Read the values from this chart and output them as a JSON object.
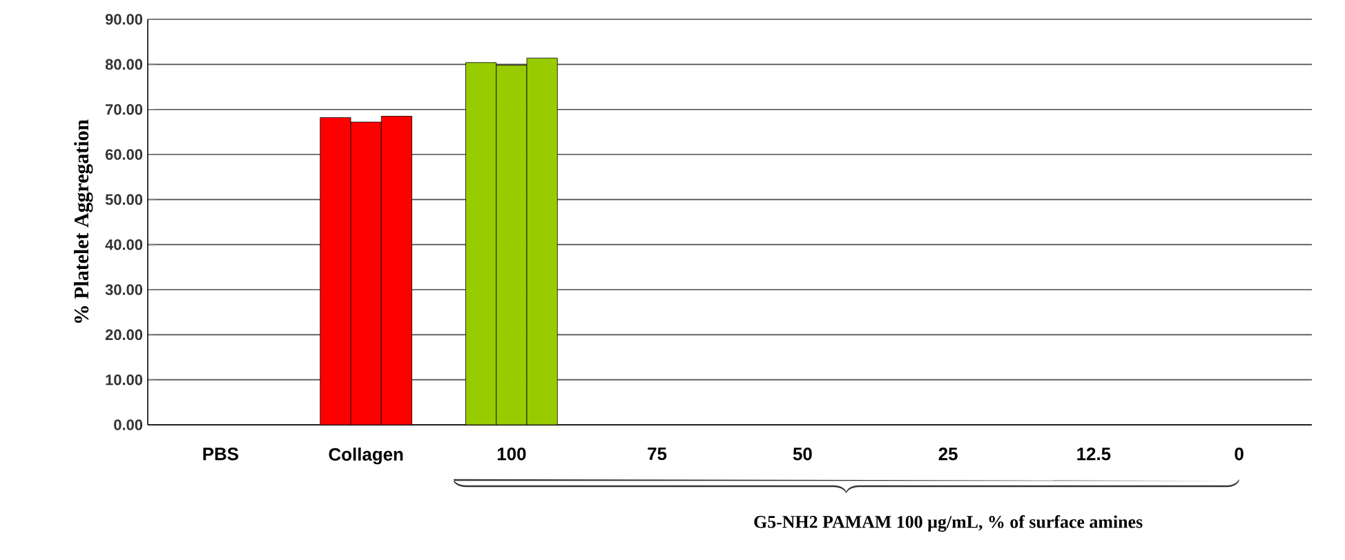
{
  "chart_data": {
    "type": "bar",
    "ylabel": "% Platelet Aggregation",
    "xlabel": "G5-NH2 PAMAM 100 µg/mL, % of surface amines",
    "categories": [
      "PBS",
      "Collagen",
      "100",
      "75",
      "50",
      "25",
      "12.5",
      "0"
    ],
    "series": [
      {
        "values": [
          null,
          68.2,
          80.4,
          null,
          null,
          null,
          null,
          null
        ],
        "colors": [
          null,
          "#ff0000",
          "#99cc00",
          null,
          null,
          null,
          null,
          null
        ]
      },
      {
        "values": [
          null,
          67.2,
          79.8,
          null,
          null,
          null,
          null,
          null
        ],
        "colors": [
          null,
          "#ff0000",
          "#99cc00",
          null,
          null,
          null,
          null,
          null
        ]
      },
      {
        "values": [
          null,
          68.5,
          81.4,
          null,
          null,
          null,
          null,
          null
        ],
        "colors": [
          null,
          "#ff0000",
          "#99cc00",
          null,
          null,
          null,
          null,
          null
        ]
      }
    ],
    "ylim": [
      0,
      90
    ],
    "yticks": [
      {
        "value": 0,
        "label": "0.00"
      },
      {
        "value": 10,
        "label": "10.00"
      },
      {
        "value": 20,
        "label": "20.00"
      },
      {
        "value": 30,
        "label": "30.00"
      },
      {
        "value": 40,
        "label": "40.00"
      },
      {
        "value": 50,
        "label": "50.00"
      },
      {
        "value": 60,
        "label": "60.00"
      },
      {
        "value": 70,
        "label": "70.00"
      },
      {
        "value": 80,
        "label": "80.00"
      },
      {
        "value": 90,
        "label": "90.00"
      }
    ],
    "grid": "y"
  }
}
